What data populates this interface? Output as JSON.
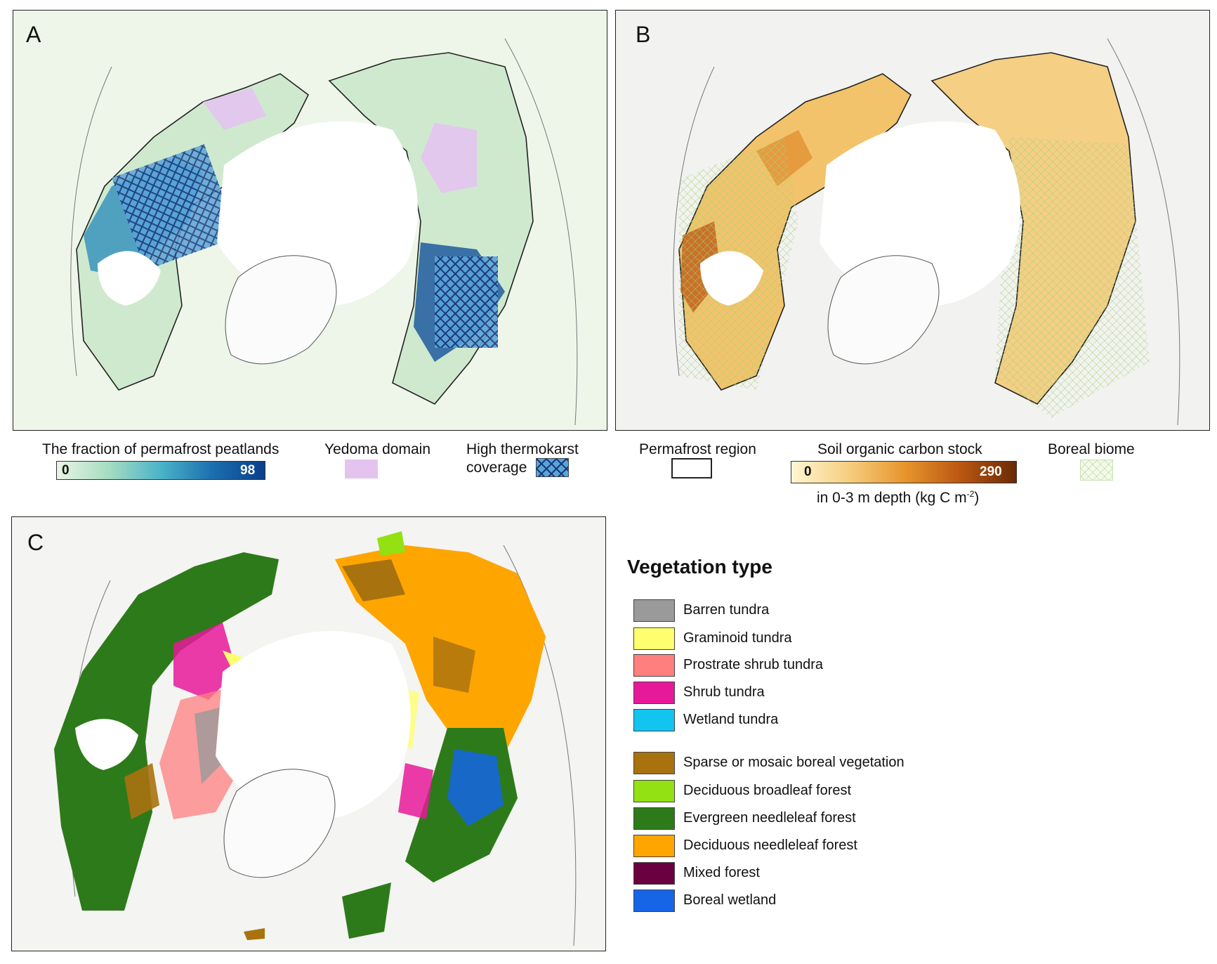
{
  "panels": {
    "a": {
      "letter": "A"
    },
    "b": {
      "letter": "B"
    },
    "c": {
      "letter": "C"
    }
  },
  "legend_a": {
    "peat_title": "The fraction of permafrost peatlands",
    "peat_min": "0",
    "peat_max": "98",
    "yedoma_label": "Yedoma domain",
    "thermokarst_label_1": "High thermokarst",
    "thermokarst_label_2": "coverage",
    "colors": {
      "peat_low": "#e9f5e4",
      "peat_mid": "#4bb3c8",
      "peat_high": "#0b3e8a",
      "yedoma": "#e4c4ef"
    }
  },
  "legend_b": {
    "permafrost_label": "Permafrost region",
    "soc_title": "Soil organic carbon stock",
    "soc_min": "0",
    "soc_max": "290",
    "soc_unit_text": "in 0-3 m depth (kg C m",
    "soc_unit_sup": "-2",
    "soc_unit_close": ")",
    "boreal_label": "Boreal biome",
    "colors": {
      "soc_low": "#fff6d2",
      "soc_mid": "#e8962e",
      "soc_high": "#6a2a05",
      "boreal_hatch": "#a8d080"
    }
  },
  "vegetation": {
    "title": "Vegetation type",
    "items": [
      {
        "label": "Barren tundra",
        "color": "#9a9a9a"
      },
      {
        "label": "Graminoid tundra",
        "color": "#ffff70"
      },
      {
        "label": "Prostrate shrub tundra",
        "color": "#ff7f7f"
      },
      {
        "label": "Shrub tundra",
        "color": "#e6199a"
      },
      {
        "label": "Wetland tundra",
        "color": "#12c4f0"
      },
      {
        "label": "Sparse or mosaic boreal vegetation",
        "color": "#a8720f"
      },
      {
        "label": "Deciduous broadleaf forest",
        "color": "#93e013"
      },
      {
        "label": "Evergreen needleleaf forest",
        "color": "#2d7a1a"
      },
      {
        "label": "Deciduous needleleaf forest",
        "color": "#ffa500"
      },
      {
        "label": "Mixed forest",
        "color": "#6b0040"
      },
      {
        "label": "Boreal wetland",
        "color": "#1565e6"
      }
    ]
  }
}
